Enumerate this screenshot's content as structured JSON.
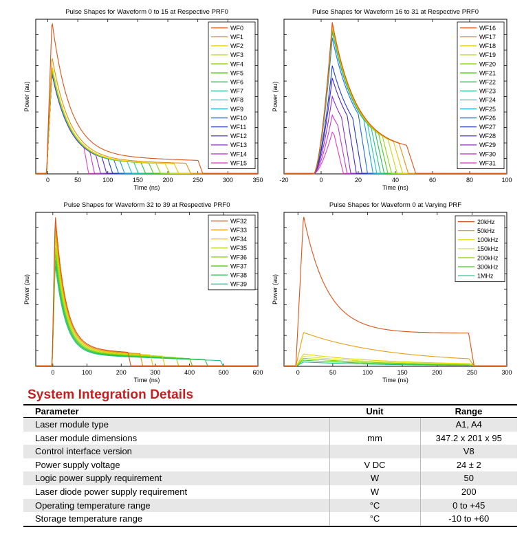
{
  "chart_data": [
    {
      "type": "line",
      "title": "Pulse Shapes for Waveform 0 to 15 at Respective PRF0",
      "xlabel": "Time (ns)",
      "ylabel": "Power (au)",
      "xlim": [
        -20,
        350
      ],
      "ylim": [
        0,
        1.0
      ],
      "xticks": [
        "0",
        "50",
        "100",
        "150",
        "200",
        "250",
        "300",
        "350"
      ],
      "xtick_values": [
        0,
        50,
        100,
        150,
        200,
        250,
        300,
        350
      ],
      "legend_position": "top-right",
      "series": [
        {
          "name": "WF0",
          "peak": 0.99,
          "end": 250,
          "color": "#d95319"
        },
        {
          "name": "WF1",
          "peak": 0.76,
          "end": 230,
          "color": "#e58f10"
        },
        {
          "name": "WF2",
          "peak": 0.7,
          "end": 210,
          "color": "#e6c800"
        },
        {
          "name": "WF3",
          "peak": 0.69,
          "end": 195,
          "color": "#c6d90e"
        },
        {
          "name": "WF4",
          "peak": 0.69,
          "end": 180,
          "color": "#8fd611"
        },
        {
          "name": "WF5",
          "peak": 0.68,
          "end": 168,
          "color": "#52cc18"
        },
        {
          "name": "WF6",
          "peak": 0.68,
          "end": 155,
          "color": "#22c44a"
        },
        {
          "name": "WF7",
          "peak": 0.68,
          "end": 143,
          "color": "#1cc58a"
        },
        {
          "name": "WF8",
          "peak": 0.67,
          "end": 132,
          "color": "#19c7c0"
        },
        {
          "name": "WF9",
          "peak": 0.67,
          "end": 120,
          "color": "#16a4dd"
        },
        {
          "name": "WF10",
          "peak": 0.67,
          "end": 110,
          "color": "#1f6fd9"
        },
        {
          "name": "WF11",
          "peak": 0.66,
          "end": 100,
          "color": "#2339c6"
        },
        {
          "name": "WF12",
          "peak": 0.66,
          "end": 90,
          "color": "#4a2ac2"
        },
        {
          "name": "WF13",
          "peak": 0.65,
          "end": 80,
          "color": "#8a2fcc"
        },
        {
          "name": "WF14",
          "peak": 0.65,
          "end": 70,
          "color": "#c43ad1"
        },
        {
          "name": "WF15",
          "peak": 0.65,
          "end": 60,
          "color": "#e23fc3"
        }
      ]
    },
    {
      "type": "line",
      "title": "Pulse Shapes for Waveform 16 to 31 at Respective PRF0",
      "xlabel": "Time (ns)",
      "ylabel": "Power (au)",
      "xlim": [
        -20,
        100
      ],
      "ylim": [
        0,
        1.0
      ],
      "xticks": [
        "-20",
        "0",
        "20",
        "40",
        "60",
        "80",
        "100"
      ],
      "xtick_values": [
        -20,
        0,
        20,
        40,
        60,
        80,
        100
      ],
      "legend_position": "top-right",
      "series": [
        {
          "name": "WF16",
          "peak": 0.98,
          "end": 46,
          "color": "#d95319"
        },
        {
          "name": "WF17",
          "peak": 0.97,
          "end": 42,
          "color": "#e58f10"
        },
        {
          "name": "WF18",
          "peak": 0.96,
          "end": 39,
          "color": "#e6c800"
        },
        {
          "name": "WF19",
          "peak": 0.95,
          "end": 36,
          "color": "#c6d90e"
        },
        {
          "name": "WF20",
          "peak": 0.95,
          "end": 33,
          "color": "#8fd611"
        },
        {
          "name": "WF21",
          "peak": 0.94,
          "end": 31,
          "color": "#52cc18"
        },
        {
          "name": "WF22",
          "peak": 0.94,
          "end": 29,
          "color": "#22c44a"
        },
        {
          "name": "WF23",
          "peak": 0.93,
          "end": 27,
          "color": "#1cc58a"
        },
        {
          "name": "WF24",
          "peak": 0.93,
          "end": 25,
          "color": "#19c7c0"
        },
        {
          "name": "WF25",
          "peak": 0.92,
          "end": 23,
          "color": "#16a4dd"
        },
        {
          "name": "WF26",
          "peak": 0.88,
          "end": 20,
          "color": "#1f6fd9"
        },
        {
          "name": "WF27",
          "peak": 0.7,
          "end": 17,
          "color": "#2339c6"
        },
        {
          "name": "WF28",
          "peak": 0.62,
          "end": 14,
          "color": "#4a2ac2"
        },
        {
          "name": "WF29",
          "peak": 0.5,
          "end": 11,
          "color": "#8a2fcc"
        },
        {
          "name": "WF30",
          "peak": 0.38,
          "end": 9,
          "color": "#c43ad1"
        },
        {
          "name": "WF31",
          "peak": 0.27,
          "end": 7,
          "color": "#e23fc3"
        }
      ]
    },
    {
      "type": "line",
      "title": "Pulse Shapes for Waveform 32 to 39 at Respective PRF0",
      "xlabel": "Time (ns)",
      "ylabel": "Power (au)",
      "xlim": [
        -50,
        600
      ],
      "ylim": [
        0,
        1.0
      ],
      "xticks": [
        "0",
        "100",
        "200",
        "300",
        "400",
        "500",
        "600"
      ],
      "xtick_values": [
        0,
        100,
        200,
        300,
        400,
        500,
        600
      ],
      "legend_position": "top-right",
      "series": [
        {
          "name": "WF32",
          "peak": 0.99,
          "end": 220,
          "color": "#d95319"
        },
        {
          "name": "WF33",
          "peak": 0.94,
          "end": 255,
          "color": "#e58f10"
        },
        {
          "name": "WF34",
          "peak": 0.89,
          "end": 285,
          "color": "#e6c800"
        },
        {
          "name": "WF35",
          "peak": 0.84,
          "end": 320,
          "color": "#c6d90e"
        },
        {
          "name": "WF36",
          "peak": 0.79,
          "end": 360,
          "color": "#8fd611"
        },
        {
          "name": "WF37",
          "peak": 0.75,
          "end": 400,
          "color": "#52cc18"
        },
        {
          "name": "WF38",
          "peak": 0.71,
          "end": 445,
          "color": "#22c44a"
        },
        {
          "name": "WF39",
          "peak": 0.67,
          "end": 490,
          "color": "#1cc58a"
        }
      ]
    },
    {
      "type": "line",
      "title": "Pulse Shapes for Waveform 0 at Varying PRF",
      "xlabel": "Time (ns)",
      "ylabel": "Power (au)",
      "xlim": [
        -20,
        300
      ],
      "ylim": [
        0,
        1.0
      ],
      "xticks": [
        "0",
        "50",
        "100",
        "150",
        "200",
        "250",
        "300"
      ],
      "xtick_values": [
        0,
        50,
        100,
        150,
        200,
        250,
        300
      ],
      "legend_position": "top-left",
      "series": [
        {
          "name": "20kHz",
          "peak": 0.98,
          "end": 245,
          "color": "#d95319"
        },
        {
          "name": "50kHz",
          "peak": 0.22,
          "end": 245,
          "color": "#e5a010"
        },
        {
          "name": "100kHz",
          "peak": 0.08,
          "end": 245,
          "color": "#e6d800"
        },
        {
          "name": "150kHz",
          "peak": 0.065,
          "end": 245,
          "color": "#d4e64d"
        },
        {
          "name": "200kHz",
          "peak": 0.052,
          "end": 245,
          "color": "#8fd611"
        },
        {
          "name": "300kHz",
          "peak": 0.04,
          "end": 245,
          "color": "#4ad02a"
        },
        {
          "name": "1MHz",
          "peak": 0.028,
          "end": 245,
          "color": "#1cc58a"
        }
      ]
    }
  ],
  "section_title": "System Integration Details",
  "table": {
    "headers": [
      "Parameter",
      "Unit",
      "Range"
    ],
    "rows": [
      [
        "Laser module type",
        "",
        "A1, A4"
      ],
      [
        "Laser module dimensions",
        "mm",
        "347.2 x 201 x 95"
      ],
      [
        "Control interface version",
        "",
        "V8"
      ],
      [
        "Power supply voltage",
        "V DC",
        "24 ± 2"
      ],
      [
        "Logic power supply requirement",
        "W",
        "50"
      ],
      [
        "Laser diode power supply requirement",
        "W",
        "200"
      ],
      [
        "Operating temperature range",
        "°C",
        "0 to +45"
      ],
      [
        "Storage temperature range",
        "°C",
        "-10 to +60"
      ]
    ]
  }
}
